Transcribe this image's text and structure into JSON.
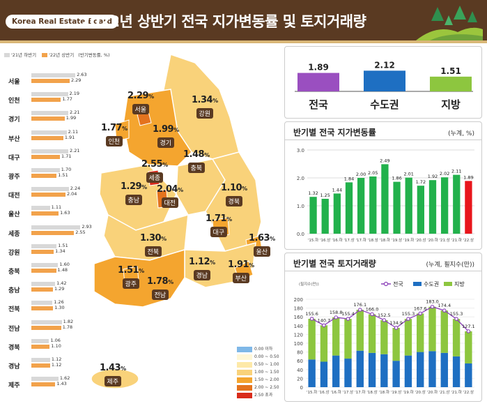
{
  "header": {
    "badge": "Korea Real Estate Board",
    "title": "2022년 상반기 전국 지가변동률 및 토지거래량"
  },
  "left_legend": {
    "prev": "'21년 하반기",
    "curr": "'22년 상반기",
    "unit": "(반기변동률, %)"
  },
  "colors": {
    "header_bg": "#5a3a22",
    "prev_bar": "#d8d8d8",
    "curr_bar": "#f2a24b",
    "green": "#22b14c",
    "red": "#e8161c"
  },
  "regions": [
    {
      "name": "서울",
      "prev": "2.63",
      "curr": "2.29",
      "p": 2.63,
      "c": 2.29
    },
    {
      "name": "인천",
      "prev": "2.19",
      "curr": "1.77",
      "p": 2.19,
      "c": 1.77
    },
    {
      "name": "경기",
      "prev": "2.21",
      "curr": "1.99",
      "p": 2.21,
      "c": 1.99
    },
    {
      "name": "부산",
      "prev": "2.11",
      "curr": "1.91",
      "p": 2.11,
      "c": 1.91
    },
    {
      "name": "대구",
      "prev": "2.21",
      "curr": "1.71",
      "p": 2.21,
      "c": 1.71
    },
    {
      "name": "광주",
      "prev": "1.70",
      "curr": "1.51",
      "p": 1.7,
      "c": 1.51
    },
    {
      "name": "대전",
      "prev": "2.24",
      "curr": "2.04",
      "p": 2.24,
      "c": 2.04
    },
    {
      "name": "울산",
      "prev": "1.11",
      "curr": "1.63",
      "p": 1.11,
      "c": 1.63
    },
    {
      "name": "세종",
      "prev": "2.93",
      "curr": "2.55",
      "p": 2.93,
      "c": 2.55
    },
    {
      "name": "강원",
      "prev": "1.51",
      "curr": "1.34",
      "p": 1.51,
      "c": 1.34
    },
    {
      "name": "충북",
      "prev": "1.60",
      "curr": "1.48",
      "p": 1.6,
      "c": 1.48
    },
    {
      "name": "충남",
      "prev": "1.42",
      "curr": "1.29",
      "p": 1.42,
      "c": 1.29
    },
    {
      "name": "전북",
      "prev": "1.26",
      "curr": "1.30",
      "p": 1.26,
      "c": 1.3
    },
    {
      "name": "전남",
      "prev": "1.82",
      "curr": "1.78",
      "p": 1.82,
      "c": 1.78
    },
    {
      "name": "경북",
      "prev": "1.06",
      "curr": "1.10",
      "p": 1.06,
      "c": 1.1
    },
    {
      "name": "경남",
      "prev": "1.12",
      "curr": "1.12",
      "p": 1.12,
      "c": 1.12
    },
    {
      "name": "제주",
      "prev": "1.62",
      "curr": "1.43",
      "p": 1.62,
      "c": 1.43
    }
  ],
  "map_labels": [
    {
      "name": "서울",
      "value": "2.29"
    },
    {
      "name": "인천",
      "value": "1.77"
    },
    {
      "name": "경기",
      "value": "1.99"
    },
    {
      "name": "강원",
      "value": "1.34"
    },
    {
      "name": "세종",
      "value": "2.55"
    },
    {
      "name": "충북",
      "value": "1.48"
    },
    {
      "name": "충남",
      "value": "1.29"
    },
    {
      "name": "대전",
      "value": "2.04"
    },
    {
      "name": "경북",
      "value": "1.10"
    },
    {
      "name": "대구",
      "value": "1.71"
    },
    {
      "name": "전북",
      "value": "1.30"
    },
    {
      "name": "울산",
      "value": "1.63"
    },
    {
      "name": "광주",
      "value": "1.51"
    },
    {
      "name": "전남",
      "value": "1.78"
    },
    {
      "name": "경남",
      "value": "1.12"
    },
    {
      "name": "부산",
      "value": "1.91"
    },
    {
      "name": "제주",
      "value": "1.43"
    }
  ],
  "map_legend": [
    {
      "label": "0.00 이하",
      "color": "#7fb8e8"
    },
    {
      "label": "0.00 ~ 0.50",
      "color": "#fff7d6"
    },
    {
      "label": "0.50 ~ 1.00",
      "color": "#fde9a8"
    },
    {
      "label": "1.00 ~ 1.50",
      "color": "#f9d27a"
    },
    {
      "label": "1.50 ~ 2.00",
      "color": "#f4a52f"
    },
    {
      "label": "2.00 ~ 2.50",
      "color": "#e4731e"
    },
    {
      "label": "2.50 초과",
      "color": "#d92b1a"
    }
  ],
  "chart_data": [
    {
      "type": "bar",
      "categories": [
        "전국",
        "수도권",
        "지방"
      ],
      "values": [
        1.89,
        2.12,
        1.51
      ],
      "labels": [
        "1.89",
        "2.12",
        "1.51"
      ],
      "colors": [
        "#9a4fc0",
        "#1e6fc2",
        "#8dc63f"
      ]
    },
    {
      "type": "bar",
      "title": "반기별 전국 지가변동률",
      "unit": "(누계, %)",
      "categories": [
        "'15.하",
        "'16.상",
        "'16.하",
        "'17.상",
        "'17.하",
        "'18.상",
        "'18.하",
        "'19.상",
        "'19.하",
        "'20.상",
        "'20.하",
        "'21.상",
        "'21.하",
        "'22.상"
      ],
      "values": [
        1.32,
        1.25,
        1.44,
        1.84,
        2.0,
        2.05,
        2.49,
        1.86,
        2.01,
        1.72,
        1.92,
        2.02,
        2.11,
        1.89
      ],
      "labels": [
        "1.32",
        "1.25",
        "1.44",
        "1.84",
        "2.00",
        "2.05",
        "2.49",
        "1.86",
        "2.01",
        "1.72",
        "1.92",
        "2.02",
        "2.11",
        "1.89"
      ],
      "yticks": [
        "0.0",
        "1.0",
        "2.0",
        "3.0"
      ],
      "ylim": [
        0,
        3
      ],
      "grid": true
    },
    {
      "type": "bar",
      "title": "반기별 전국 토지거래량",
      "unit": "(누계, 필지수(만))",
      "ylabel": "(필지수(만))",
      "categories": [
        "'15.하",
        "'16.상",
        "'16.하",
        "'17.상",
        "'17.하",
        "'18.상",
        "'18.하",
        "'19.상",
        "'19.하",
        "'20.상",
        "'20.하",
        "'21.상",
        "'21.하",
        "'22.상"
      ],
      "series": [
        {
          "name": "전국",
          "type": "line",
          "values": [
            155.6,
            140.7,
            158.8,
            155.4,
            176.1,
            166.0,
            152.5,
            134.9,
            155.3,
            167.6,
            183.0,
            174.4,
            155.3,
            127.1
          ],
          "labels": [
            "155.6",
            "140.7",
            "158.8",
            "155.4",
            "176.1",
            "166.0",
            "152.5",
            "134.9",
            "155.3",
            "167.6",
            "183.0",
            "174.4",
            "155.3",
            "127.1"
          ],
          "color": "#8a3fb8"
        },
        {
          "name": "수도권",
          "values": [
            63,
            58,
            72,
            65,
            83,
            78,
            75,
            60,
            72,
            80,
            82,
            78,
            70,
            54
          ],
          "color": "#1e6fc2"
        },
        {
          "name": "지방",
          "values": [
            92.6,
            82.7,
            86.8,
            90.4,
            93.1,
            88.0,
            77.5,
            74.9,
            83.3,
            87.6,
            101.0,
            96.4,
            85.3,
            73.1
          ],
          "color": "#8dc63f"
        }
      ],
      "yticks": [
        "0",
        "20",
        "40",
        "60",
        "80",
        "100",
        "120",
        "140",
        "160",
        "180",
        "200"
      ],
      "ylim": [
        0,
        200
      ],
      "legend": "top-right"
    }
  ]
}
